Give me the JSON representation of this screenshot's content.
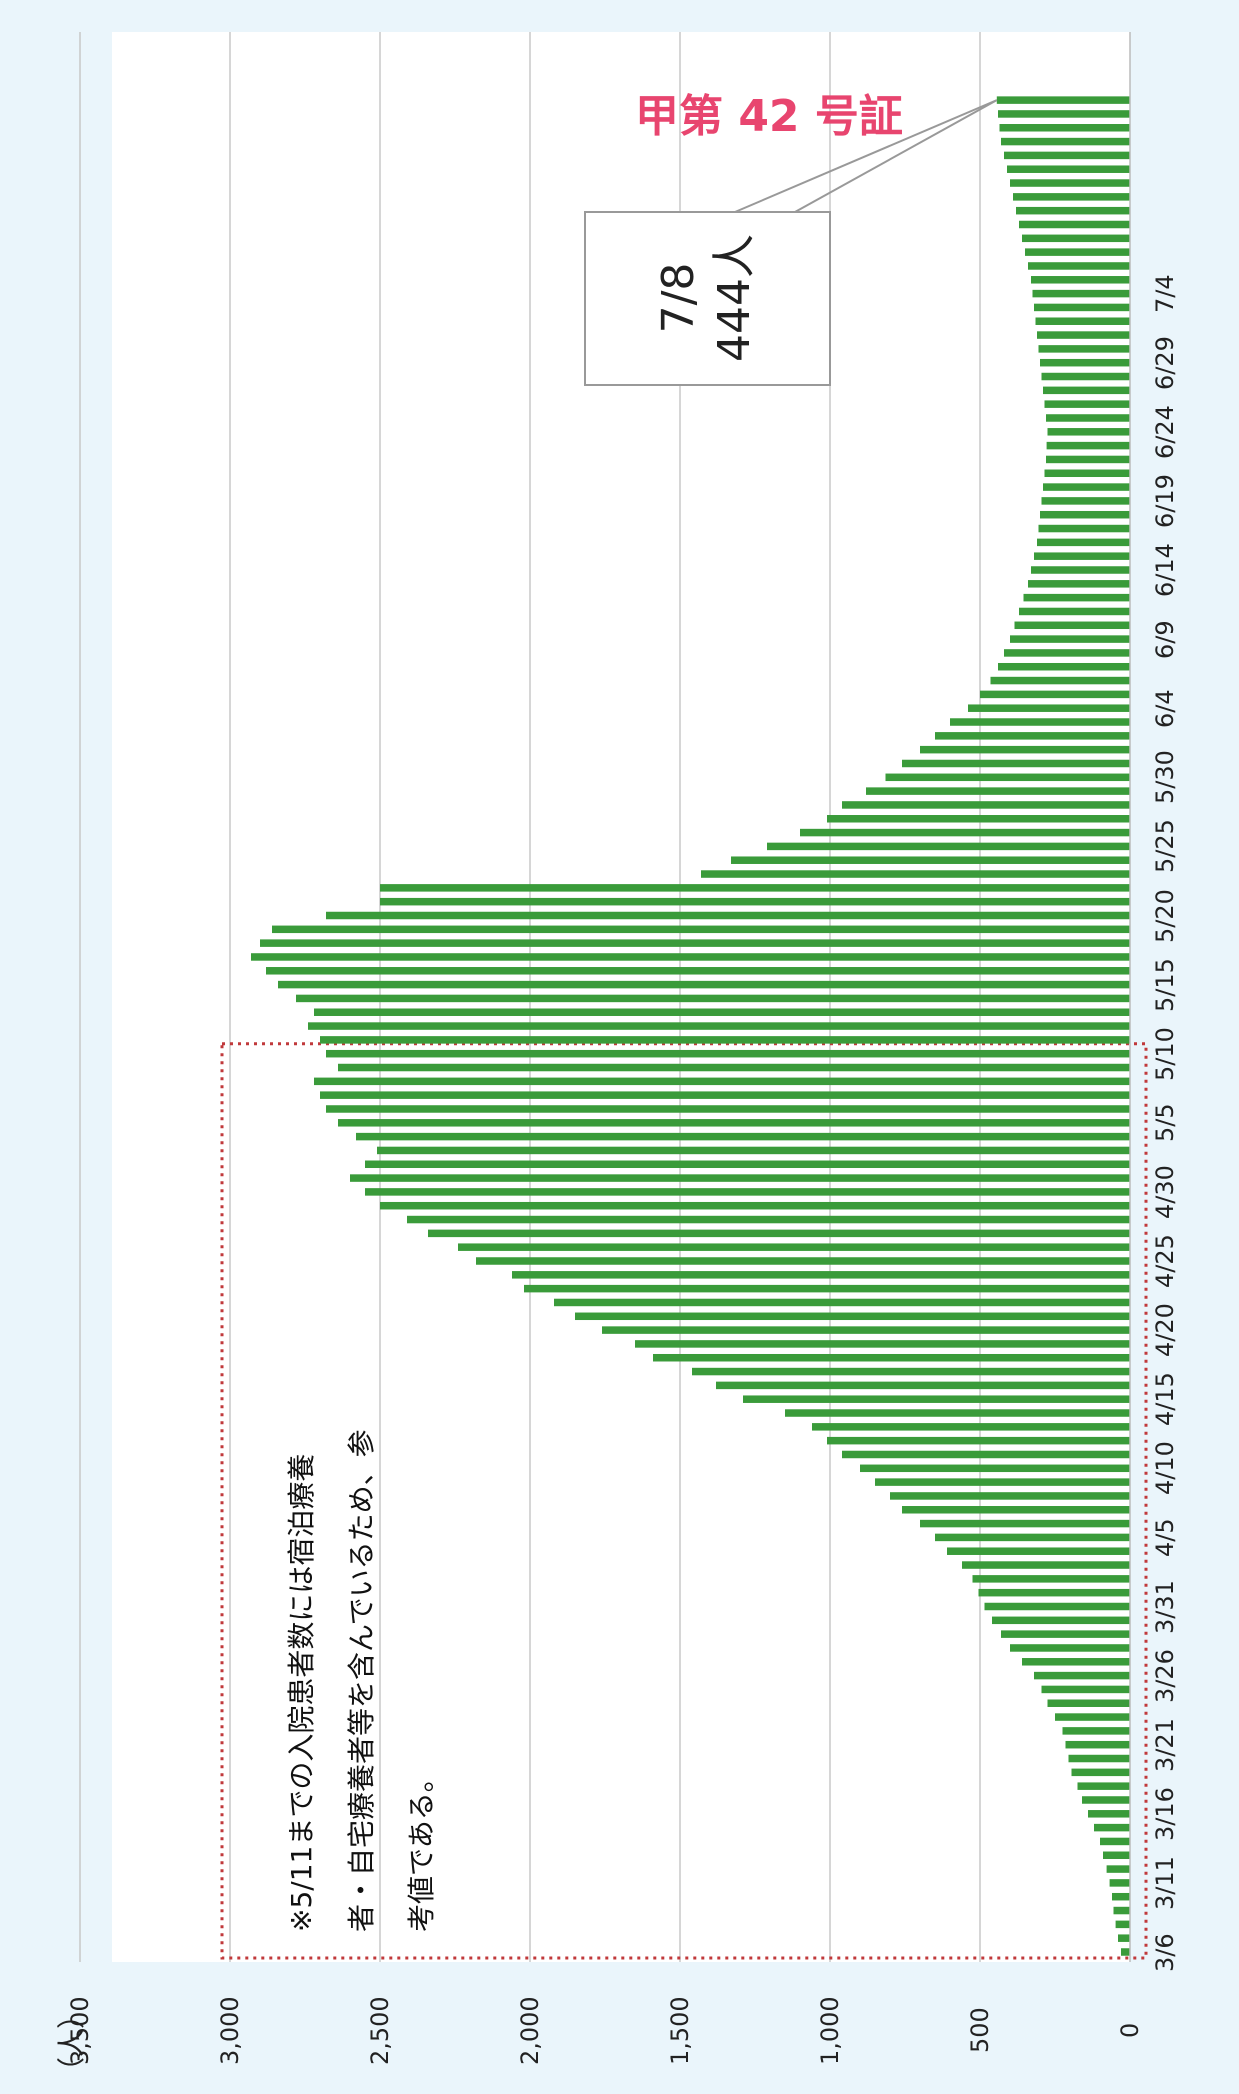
{
  "chart_data": {
    "type": "bar",
    "orientation": "horizontal",
    "unit_label": "（人）",
    "x_ticks": [
      "0",
      "500",
      "1,000",
      "1,500",
      "2,000",
      "2,500",
      "3,000",
      "3,500"
    ],
    "x_tick_values": [
      0,
      500,
      1000,
      1500,
      2000,
      2500,
      3000,
      3500
    ],
    "xlim": [
      0,
      3500
    ],
    "category_labels": [
      "3/6",
      "3/11",
      "3/16",
      "3/21",
      "3/26",
      "3/31",
      "4/5",
      "4/10",
      "4/15",
      "4/20",
      "4/25",
      "4/30",
      "5/5",
      "5/10",
      "5/15",
      "5/20",
      "5/25",
      "5/30",
      "6/4",
      "6/9",
      "6/14",
      "6/19",
      "6/24",
      "6/29",
      "7/4"
    ],
    "first_date": "3/6",
    "last_date": "7/8",
    "values": [
      30,
      40,
      48,
      55,
      60,
      68,
      78,
      90,
      100,
      120,
      140,
      160,
      175,
      195,
      205,
      215,
      225,
      250,
      275,
      295,
      320,
      360,
      400,
      430,
      460,
      485,
      505,
      525,
      560,
      610,
      650,
      700,
      760,
      800,
      850,
      900,
      960,
      1010,
      1060,
      1150,
      1290,
      1380,
      1460,
      1590,
      1650,
      1760,
      1850,
      1920,
      2020,
      2060,
      2180,
      2240,
      2340,
      2410,
      2500,
      2550,
      2600,
      2550,
      2510,
      2580,
      2640,
      2680,
      2700,
      2720,
      2640,
      2680,
      2700,
      2740,
      2720,
      2780,
      2840,
      2880,
      2930,
      2900,
      2860,
      2680,
      2500,
      2500,
      1430,
      1330,
      1210,
      1100,
      1010,
      960,
      880,
      815,
      760,
      700,
      650,
      600,
      540,
      500,
      465,
      440,
      420,
      400,
      385,
      370,
      355,
      340,
      330,
      320,
      310,
      305,
      300,
      295,
      290,
      285,
      280,
      278,
      275,
      280,
      285,
      290,
      295,
      300,
      305,
      310,
      315,
      320,
      325,
      330,
      340,
      350,
      360,
      370,
      380,
      390,
      400,
      410,
      420,
      430,
      435,
      440,
      444
    ],
    "colors": {
      "bar": "#3a9b3a",
      "grid": "#c8c8c8",
      "note_box": "#c0393b",
      "callout_border": "#999999"
    },
    "grid": true,
    "note": {
      "lines": [
        "※5/11までの入院患者数には宿泊療養",
        "者・自宅療養者等を含んでいるため、参",
        "考値である。"
      ],
      "covers_through_date": "5/10"
    },
    "callout": {
      "date": "7/8",
      "value_text": "444人"
    },
    "stamp": "甲第 42 号証"
  }
}
